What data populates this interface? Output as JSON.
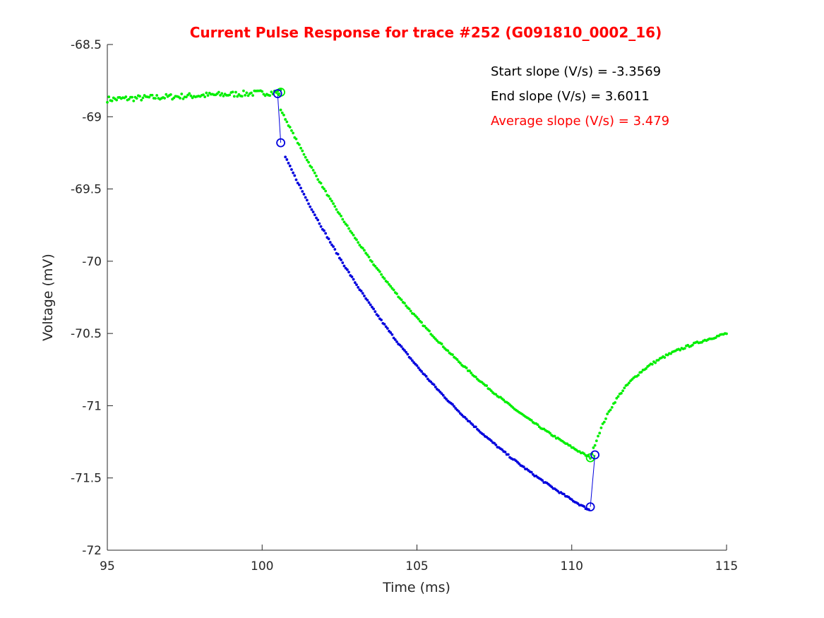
{
  "chart_data": {
    "type": "scatter",
    "title": "Current Pulse Response for trace #252 (G091810_0002_16)",
    "title_color": "#ff0000",
    "xlabel": "Time (ms)",
    "ylabel": "Voltage (mV)",
    "xlim": [
      95,
      115
    ],
    "ylim": [
      -72,
      -68.5
    ],
    "xticks": [
      95,
      100,
      105,
      110,
      115
    ],
    "xtick_labels": [
      "95",
      "100",
      "105",
      "110",
      "115"
    ],
    "yticks": [
      -68.5,
      -69,
      -69.5,
      -70,
      -70.5,
      -71,
      -71.5,
      -72
    ],
    "ytick_labels": [
      "-68.5",
      "-69",
      "-69.5",
      "-70",
      "-70.5",
      "-71",
      "-71.5",
      "-72"
    ],
    "grid": false,
    "annotations": [
      {
        "text": "Start slope (V/s) = -3.3569",
        "color": "#000000"
      },
      {
        "text": "End slope (V/s) = 3.6011",
        "color": "#000000"
      },
      {
        "text": "Average slope (V/s) = 3.479",
        "color": "#ff0000"
      }
    ],
    "series": [
      {
        "color": "#00ee00",
        "marker": "dot",
        "segments": [
          {
            "x_start": 95.0,
            "x_end": 100.6,
            "y_start": -68.88,
            "y_end": -68.83,
            "noise": 0.02
          },
          {
            "x_start": 100.6,
            "x_end": 110.6,
            "y_start": -68.95,
            "y_end": -71.36,
            "curve": "exp",
            "noise": 0.006
          },
          {
            "x_start": 110.65,
            "x_end": 115.0,
            "y_start": -71.33,
            "y_end": -70.5,
            "curve": "recovery",
            "noise": 0.008
          }
        ]
      },
      {
        "color": "#0000dd",
        "marker": "dot",
        "segments": [
          {
            "x_start": 100.75,
            "x_end": 110.55,
            "y_start": -69.28,
            "y_end": -71.72,
            "curve": "exp",
            "noise": 0.006
          }
        ]
      }
    ],
    "markers": [
      {
        "shape": "circle",
        "color": "#00ee00",
        "x": 100.6,
        "y": -68.83
      },
      {
        "shape": "circle",
        "color": "#00ee00",
        "x": 110.6,
        "y": -71.36
      },
      {
        "shape": "circle",
        "color": "#0000dd",
        "x": 100.5,
        "y": -68.84
      },
      {
        "shape": "circle",
        "color": "#0000dd",
        "x": 100.6,
        "y": -69.18
      },
      {
        "shape": "circle",
        "color": "#0000dd",
        "x": 110.6,
        "y": -71.7
      },
      {
        "shape": "circle",
        "color": "#0000dd",
        "x": 110.75,
        "y": -71.34
      }
    ],
    "lines": [
      {
        "color": "#0000dd",
        "points": [
          [
            100.5,
            -68.84
          ],
          [
            100.6,
            -69.18
          ]
        ]
      },
      {
        "color": "#0000dd",
        "points": [
          [
            110.6,
            -71.7
          ],
          [
            110.75,
            -71.34
          ]
        ]
      }
    ]
  }
}
